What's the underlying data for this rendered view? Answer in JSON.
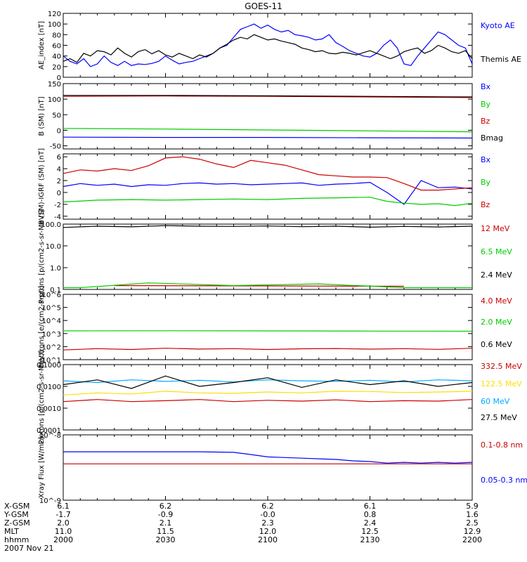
{
  "title": "GOES-11",
  "date": "2007 Nov 21",
  "colors": {
    "black": "#000000",
    "blue": "#0000ff",
    "green": "#00cc00",
    "red": "#cc0000",
    "cyan": "#00aaff",
    "yellow": "#ffdd00"
  },
  "x_axis": {
    "row_labels": [
      "X-GSM",
      "Y-GSM",
      "Z-GSM",
      "MLT",
      "hhmm"
    ],
    "columns": [
      {
        "values": [
          "6.1",
          "-1.7",
          "2.0",
          "11.0",
          "2000"
        ]
      },
      {
        "values": [
          "6.2",
          "-0.9",
          "2.1",
          "11.5",
          "2030"
        ]
      },
      {
        "values": [
          "6.2",
          "-0.0",
          "2.3",
          "12.0",
          "2100"
        ]
      },
      {
        "values": [
          "6.1",
          "0.8",
          "2.4",
          "12.5",
          "2130"
        ]
      },
      {
        "values": [
          "5.9",
          "1.6",
          "2.5",
          "12.9",
          "2200"
        ]
      }
    ]
  },
  "chart_data": [
    {
      "type": "line",
      "ylabel": "AE_index [nT]",
      "yscale": "linear",
      "ylim": [
        0,
        120
      ],
      "yticks": [
        "0",
        "20",
        "40",
        "60",
        "80",
        "100",
        "120"
      ],
      "series": [
        {
          "name": "Kyoto AE",
          "color": "blue",
          "x": [
            0,
            2,
            4,
            6,
            8,
            10,
            12,
            14,
            16,
            18,
            20,
            22,
            24,
            26,
            28,
            30,
            32,
            34,
            36,
            38,
            40,
            42,
            44,
            46,
            48,
            50,
            52,
            54,
            56,
            58,
            60,
            62,
            64,
            66,
            68,
            70,
            72,
            74,
            76,
            78,
            80,
            82,
            84,
            86,
            88,
            90,
            92,
            94,
            96,
            98,
            100,
            102,
            104,
            106,
            108,
            110,
            112,
            114,
            116,
            118,
            120
          ],
          "values": [
            40,
            30,
            25,
            35,
            20,
            25,
            40,
            28,
            22,
            30,
            22,
            25,
            24,
            26,
            30,
            40,
            32,
            25,
            28,
            30,
            35,
            40,
            45,
            55,
            60,
            75,
            90,
            95,
            100,
            92,
            98,
            90,
            85,
            88,
            80,
            78,
            75,
            70,
            72,
            80,
            65,
            58,
            50,
            45,
            40,
            38,
            45,
            60,
            70,
            55,
            25,
            22,
            40,
            55,
            70,
            85,
            80,
            70,
            60,
            55,
            25
          ]
        },
        {
          "name": "Themis AE",
          "color": "black",
          "x": [
            0,
            2,
            4,
            6,
            8,
            10,
            12,
            14,
            16,
            18,
            20,
            22,
            24,
            26,
            28,
            30,
            32,
            34,
            36,
            38,
            40,
            42,
            44,
            46,
            48,
            50,
            52,
            54,
            56,
            58,
            60,
            62,
            64,
            66,
            68,
            70,
            72,
            74,
            76,
            78,
            80,
            82,
            84,
            86,
            88,
            90,
            92,
            94,
            96,
            98,
            100,
            102,
            104,
            106,
            108,
            110,
            112,
            114,
            116,
            118,
            120
          ],
          "values": [
            30,
            35,
            28,
            45,
            40,
            50,
            48,
            42,
            55,
            45,
            38,
            48,
            52,
            44,
            50,
            42,
            38,
            45,
            40,
            35,
            42,
            38,
            45,
            55,
            62,
            70,
            75,
            72,
            80,
            75,
            70,
            72,
            68,
            65,
            62,
            55,
            52,
            48,
            50,
            45,
            44,
            47,
            45,
            42,
            46,
            50,
            45,
            40,
            35,
            40,
            48,
            52,
            55,
            45,
            50,
            60,
            55,
            48,
            45,
            50,
            35
          ]
        }
      ]
    },
    {
      "type": "line",
      "ylabel": "B (SM) [nT]",
      "yscale": "linear",
      "ylim": [
        -60,
        150
      ],
      "yticks": [
        "-50",
        "0",
        "50",
        "100",
        "150"
      ],
      "series": [
        {
          "name": "Bx",
          "color": "blue",
          "x": [
            0,
            30,
            60,
            90,
            120
          ],
          "values": [
            -22,
            -23,
            -23,
            -24,
            -25
          ]
        },
        {
          "name": "By",
          "color": "green",
          "x": [
            0,
            30,
            60,
            90,
            120
          ],
          "values": [
            6,
            4,
            1,
            -2,
            -5
          ]
        },
        {
          "name": "Bz",
          "color": "red",
          "x": [
            0,
            30,
            60,
            90,
            120
          ],
          "values": [
            109,
            110,
            109,
            107,
            105
          ]
        },
        {
          "name": "Bmag",
          "color": "black",
          "x": [
            0,
            30,
            60,
            90,
            120
          ],
          "values": [
            112,
            112,
            111,
            109,
            107
          ]
        }
      ]
    },
    {
      "type": "line",
      "ylabel": "B (SM)-IGRF (SM) [nT]",
      "yscale": "linear",
      "ylim": [
        -4.5,
        6.5
      ],
      "yticks": [
        "-4",
        "-2",
        "0",
        "2",
        "4",
        "6"
      ],
      "series": [
        {
          "name": "Bx",
          "color": "blue",
          "x": [
            0,
            5,
            10,
            15,
            20,
            25,
            30,
            35,
            40,
            45,
            50,
            55,
            60,
            65,
            70,
            75,
            80,
            85,
            90,
            95,
            100,
            105,
            110,
            115,
            120
          ],
          "values": [
            1.0,
            1.5,
            1.2,
            1.4,
            1.0,
            1.3,
            1.2,
            1.5,
            1.6,
            1.4,
            1.5,
            1.3,
            1.4,
            1.5,
            1.6,
            1.2,
            1.4,
            1.5,
            1.7,
            0.0,
            -2.0,
            2.0,
            0.8,
            0.9,
            0.6
          ]
        },
        {
          "name": "By",
          "color": "green",
          "x": [
            0,
            10,
            20,
            30,
            40,
            50,
            60,
            70,
            80,
            90,
            95,
            100,
            105,
            110,
            115,
            120
          ],
          "values": [
            -1.6,
            -1.3,
            -1.2,
            -1.3,
            -1.2,
            -1.1,
            -1.2,
            -1.0,
            -0.9,
            -0.8,
            -1.5,
            -1.8,
            -2.0,
            -1.9,
            -2.2,
            -1.8
          ]
        },
        {
          "name": "Bz",
          "color": "red",
          "x": [
            0,
            5,
            10,
            15,
            20,
            25,
            30,
            35,
            40,
            45,
            50,
            55,
            60,
            65,
            70,
            75,
            80,
            85,
            90,
            95,
            100,
            105,
            110,
            115,
            120
          ],
          "values": [
            3.2,
            3.8,
            3.6,
            4.0,
            3.7,
            4.5,
            5.8,
            6.0,
            5.6,
            4.8,
            4.2,
            5.4,
            5.0,
            4.6,
            3.8,
            3.0,
            2.8,
            2.6,
            2.6,
            2.5,
            1.5,
            0.4,
            0.4,
            0.6,
            0.8
          ]
        }
      ]
    },
    {
      "type": "line",
      "ylabel": "Protons [p/(cm2-s-sr-MeV)]",
      "yscale": "log",
      "ylim": [
        0.1,
        100
      ],
      "yticks": [
        "0.1",
        "1.0",
        "10.0",
        "100.0"
      ],
      "series": [
        {
          "name": "12 MeV",
          "color": "red",
          "x": [
            15,
            100
          ],
          "values": [
            0.15,
            0.14
          ]
        },
        {
          "name": "6.5 MeV",
          "color": "green",
          "x": [
            0,
            5,
            25,
            50,
            75,
            100,
            120
          ],
          "values": [
            0.12,
            0.12,
            0.2,
            0.15,
            0.18,
            0.12,
            0.12
          ]
        },
        {
          "name": "2.4 MeV",
          "color": "black",
          "x": [
            0,
            10,
            20,
            30,
            40,
            50,
            60,
            70,
            80,
            90,
            100,
            110,
            120
          ],
          "values": [
            70,
            80,
            75,
            85,
            80,
            78,
            82,
            76,
            80,
            72,
            78,
            74,
            80
          ]
        }
      ]
    },
    {
      "type": "line",
      "ylabel": "Electrons [e/(cm2-s-sr)]",
      "yscale": "log",
      "ylim": [
        10,
        1000000
      ],
      "yticks": [
        "10^1",
        "10^2",
        "10^3",
        "10^4",
        "10^5",
        "10^6"
      ],
      "series": [
        {
          "name": "4.0 MeV",
          "color": "red",
          "x": [
            0,
            10,
            20,
            30,
            40,
            50,
            60,
            70,
            80,
            90,
            100,
            110,
            120
          ],
          "values": [
            55,
            70,
            60,
            75,
            65,
            70,
            60,
            68,
            72,
            64,
            70,
            62,
            75
          ]
        },
        {
          "name": "2.0 MeV",
          "color": "green",
          "x": [
            0,
            30,
            60,
            90,
            120
          ],
          "values": [
            1600,
            1650,
            1600,
            1550,
            1500
          ]
        },
        {
          "name": "0.6 MeV",
          "color": "black",
          "x": [],
          "values": []
        }
      ]
    },
    {
      "type": "line",
      "ylabel": "Protons [p/(cm2-s-sr-MeV)]",
      "yscale": "log",
      "ylim": [
        0.0001,
        0.1
      ],
      "yticks": [
        "0.0001",
        "0.0010",
        "0.0100",
        "0.1000"
      ],
      "series": [
        {
          "name": "332.5 MeV",
          "color": "red",
          "x": [
            0,
            10,
            20,
            30,
            40,
            50,
            60,
            70,
            80,
            90,
            100,
            110,
            120
          ],
          "values": [
            0.002,
            0.0025,
            0.002,
            0.0022,
            0.0025,
            0.002,
            0.0023,
            0.0021,
            0.0024,
            0.002,
            0.0022,
            0.0021,
            0.0025
          ]
        },
        {
          "name": "122.5 MeV",
          "color": "yellow",
          "x": [
            0,
            10,
            20,
            30,
            40,
            50,
            60,
            70,
            80,
            90,
            100,
            110,
            120
          ],
          "values": [
            0.004,
            0.005,
            0.0045,
            0.006,
            0.005,
            0.0048,
            0.0055,
            0.005,
            0.006,
            0.0058,
            0.0052,
            0.0055,
            0.006
          ]
        },
        {
          "name": "60 MeV",
          "color": "cyan",
          "x": [
            0,
            10,
            20,
            30,
            40,
            50,
            60,
            70,
            80,
            90,
            100,
            110,
            120
          ],
          "values": [
            0.018,
            0.015,
            0.02,
            0.017,
            0.019,
            0.016,
            0.02,
            0.018,
            0.017,
            0.019,
            0.016,
            0.02,
            0.018
          ]
        },
        {
          "name": "27.5 MeV",
          "color": "black",
          "x": [
            0,
            10,
            20,
            30,
            40,
            50,
            60,
            70,
            80,
            90,
            100,
            110,
            120
          ],
          "values": [
            0.012,
            0.02,
            0.008,
            0.03,
            0.01,
            0.015,
            0.025,
            0.009,
            0.02,
            0.012,
            0.018,
            0.01,
            0.015
          ]
        }
      ]
    },
    {
      "type": "line",
      "ylabel": "Xray Flux [W/m2]",
      "yscale": "log",
      "ylim": [
        1e-09,
        1e-08
      ],
      "yticks": [
        "10^-8",
        "10^-9"
      ],
      "series": [
        {
          "name": "0.1-0.8 nm",
          "color": "red",
          "x": [
            0,
            120
          ],
          "values": [
            3.6e-09,
            3.6e-09
          ]
        },
        {
          "name": "0.05-0.3 nm",
          "color": "blue",
          "x": [
            0,
            10,
            20,
            30,
            40,
            50,
            55,
            60,
            65,
            70,
            75,
            80,
            85,
            90,
            95,
            100,
            105,
            110,
            115,
            120
          ],
          "values": [
            5.5e-09,
            5.5e-09,
            5.5e-09,
            5.5e-09,
            5.5e-09,
            5.4e-09,
            5e-09,
            4.6e-09,
            4.5e-09,
            4.4e-09,
            4.3e-09,
            4.2e-09,
            4e-09,
            3.9e-09,
            3.7e-09,
            3.8e-09,
            3.7e-09,
            3.8e-09,
            3.7e-09,
            3.8e-09
          ]
        }
      ]
    }
  ]
}
